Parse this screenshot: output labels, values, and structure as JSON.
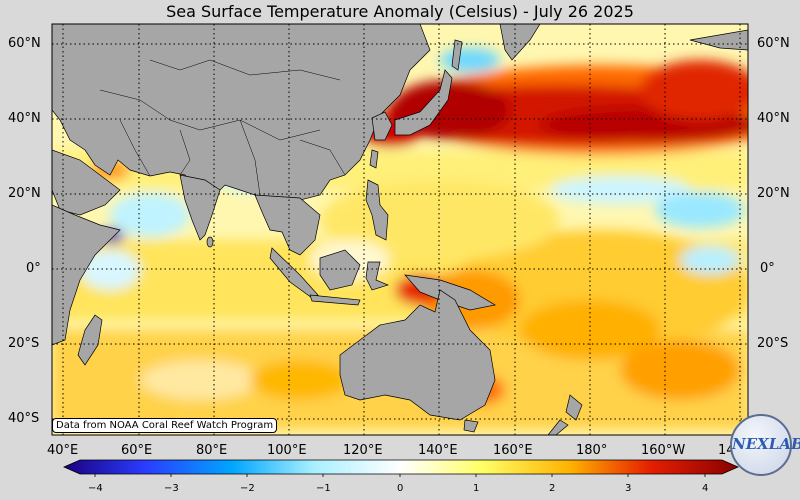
{
  "title": "Sea Surface Temperature Anomaly (Celsius) - July 26 2025",
  "latitude_labels": [
    "60°N",
    "40°N",
    "20°N",
    "0°",
    "20°S",
    "40°S"
  ],
  "longitude_labels": [
    "40°E",
    "60°E",
    "80°E",
    "100°E",
    "120°E",
    "140°E",
    "160°E",
    "180°",
    "160°W",
    "14"
  ],
  "credit": "Data from NOAA Coral Reef Watch Program",
  "colorbar": {
    "ticks": [
      "−4",
      "−3",
      "−2",
      "−1",
      "0",
      "1",
      "2",
      "3",
      "4"
    ],
    "range": [
      -4,
      4
    ]
  },
  "logo": {
    "text": "NEXLAB"
  },
  "colors": {
    "land": "#a6a6a6",
    "ocean_neutral": "#ffffff",
    "warm_low": "#ffff66",
    "warm_mid": "#ffb300",
    "warm_high": "#e01e00",
    "warm_extreme": "#a80000",
    "cool_low": "#b3f0ff",
    "cool_mid": "#33bbff",
    "cool_high": "#2a00b0"
  }
}
